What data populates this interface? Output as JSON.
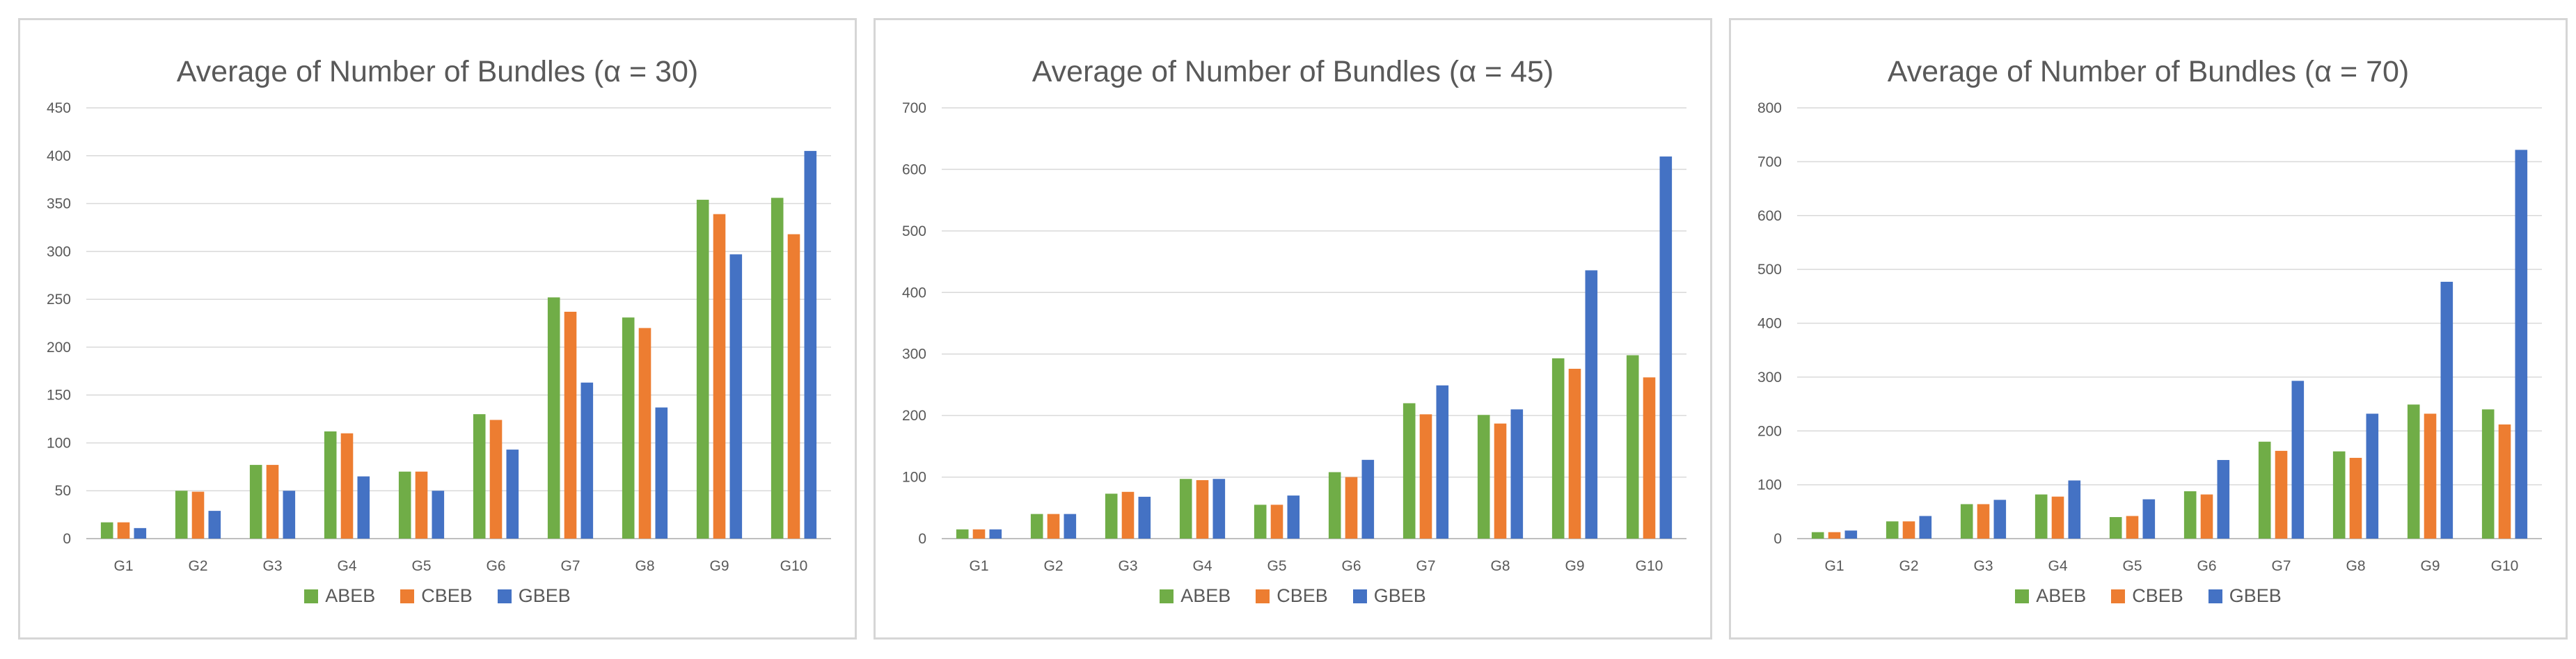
{
  "chart_data": [
    {
      "type": "bar",
      "title": "Average of Number of Bundles (α = 30)",
      "categories": [
        "G1",
        "G2",
        "G3",
        "G4",
        "G5",
        "G6",
        "G7",
        "G8",
        "G9",
        "G10"
      ],
      "ylim": [
        0,
        450
      ],
      "yticks": [
        0,
        50,
        100,
        150,
        200,
        250,
        300,
        350,
        400,
        450
      ],
      "grid": true,
      "legend_position": "bottom",
      "series": [
        {
          "name": "ABEB",
          "color": "#70ad47",
          "values": [
            17,
            50,
            77,
            112,
            70,
            130,
            252,
            231,
            354,
            356
          ]
        },
        {
          "name": "CBEB",
          "color": "#ed7d31",
          "values": [
            17,
            49,
            77,
            110,
            70,
            124,
            237,
            220,
            339,
            318
          ]
        },
        {
          "name": "GBEB",
          "color": "#4472c4",
          "values": [
            11,
            29,
            50,
            65,
            50,
            93,
            163,
            137,
            297,
            405
          ]
        }
      ]
    },
    {
      "type": "bar",
      "title": "Average of Number of Bundles (α = 45)",
      "categories": [
        "G1",
        "G2",
        "G3",
        "G4",
        "G5",
        "G6",
        "G7",
        "G8",
        "G9",
        "G10"
      ],
      "ylim": [
        0,
        700
      ],
      "yticks": [
        0,
        100,
        200,
        300,
        400,
        500,
        600,
        700
      ],
      "grid": true,
      "legend_position": "bottom",
      "series": [
        {
          "name": "ABEB",
          "color": "#70ad47",
          "values": [
            15,
            40,
            73,
            97,
            55,
            108,
            220,
            201,
            293,
            298
          ]
        },
        {
          "name": "CBEB",
          "color": "#ed7d31",
          "values": [
            15,
            40,
            76,
            95,
            55,
            100,
            202,
            187,
            276,
            262
          ]
        },
        {
          "name": "GBEB",
          "color": "#4472c4",
          "values": [
            15,
            40,
            68,
            97,
            70,
            128,
            249,
            210,
            436,
            621
          ]
        }
      ]
    },
    {
      "type": "bar",
      "title": "Average of Number of Bundles (α = 70)",
      "categories": [
        "G1",
        "G2",
        "G3",
        "G4",
        "G5",
        "G6",
        "G7",
        "G8",
        "G9",
        "G10"
      ],
      "ylim": [
        0,
        800
      ],
      "yticks": [
        0,
        100,
        200,
        300,
        400,
        500,
        600,
        700,
        800
      ],
      "grid": true,
      "legend_position": "bottom",
      "series": [
        {
          "name": "ABEB",
          "color": "#70ad47",
          "values": [
            12,
            32,
            64,
            82,
            40,
            88,
            180,
            162,
            249,
            240
          ]
        },
        {
          "name": "CBEB",
          "color": "#ed7d31",
          "values": [
            12,
            32,
            64,
            78,
            42,
            82,
            163,
            150,
            232,
            212
          ]
        },
        {
          "name": "GBEB",
          "color": "#4472c4",
          "values": [
            15,
            42,
            72,
            108,
            73,
            146,
            293,
            232,
            477,
            722
          ]
        }
      ]
    }
  ]
}
